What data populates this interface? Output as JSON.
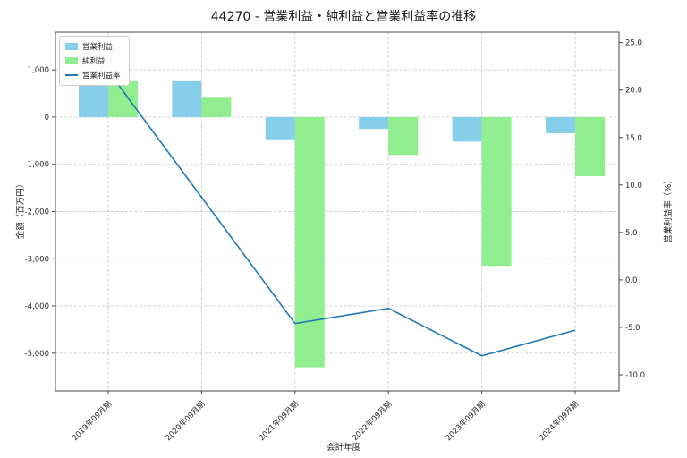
{
  "title": "44270 - 営業利益・純利益と営業利益率の推移",
  "chart_data": {
    "type": "bar",
    "subtype": "grouped-bars-with-line",
    "categories": [
      "2019年09月期",
      "2020年09月期",
      "2021年09月期",
      "2022年09月期",
      "2023年09月期",
      "2024年09月期"
    ],
    "series": [
      {
        "name": "営業利益",
        "type": "bar",
        "axis": "left",
        "color": "#87CEEB",
        "values": [
          1050,
          780,
          -470,
          -250,
          -520,
          -340
        ]
      },
      {
        "name": "純利益",
        "type": "bar",
        "axis": "left",
        "color": "#90EE90",
        "values": [
          780,
          430,
          -5300,
          -800,
          -3150,
          -1250
        ]
      },
      {
        "name": "営業利益率",
        "type": "line",
        "axis": "right",
        "color": "#1f77b4",
        "values": [
          22.0,
          8.7,
          -4.6,
          -3.0,
          -8.0,
          -5.3
        ]
      }
    ],
    "xlabel": "会計年度",
    "ylabel_left": "金額（百万円）",
    "ylabel_right": "営業利益率（%）",
    "yticks_left": [
      1000,
      0,
      -1000,
      -2000,
      -3000,
      -4000,
      -5000
    ],
    "ytick_labels_left": [
      "1,000",
      "0",
      "-1,000",
      "-2,000",
      "-3,000",
      "-4,000",
      "-5,000"
    ],
    "yticks_right": [
      25,
      20,
      15,
      10,
      5,
      0,
      -5,
      -10
    ],
    "ytick_labels_right": [
      "25.0",
      "20.0",
      "15.0",
      "10.0",
      "5.0",
      "0.0",
      "-5.0",
      "-10.0"
    ],
    "ylim_left": [
      -5800,
      1800
    ],
    "ylim_right": [
      -11.7,
      26.1
    ],
    "grid": true,
    "legend_position": "upper left"
  }
}
